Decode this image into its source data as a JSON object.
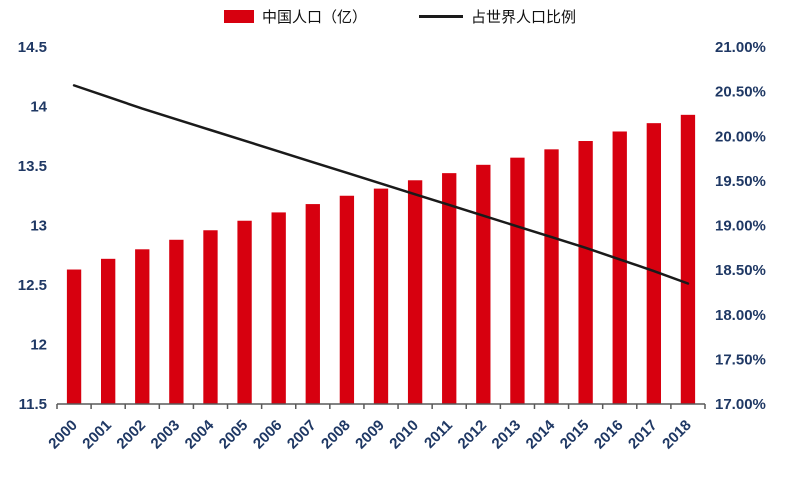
{
  "colors": {
    "bar": "#d7000f",
    "line": "#1a1a1a",
    "axis_label": "#1f3864",
    "axis_line": "#595959"
  },
  "chart_data": {
    "type": "bar",
    "subtype": "combo-bar-line",
    "title": "",
    "xlabel": "",
    "ylabel": "",
    "grid": false,
    "legend_position": "top",
    "categories": [
      "2000",
      "2001",
      "2002",
      "2003",
      "2004",
      "2005",
      "2006",
      "2007",
      "2008",
      "2009",
      "2010",
      "2011",
      "2012",
      "2013",
      "2014",
      "2015",
      "2016",
      "2017",
      "2018"
    ],
    "series": [
      {
        "name": "中国人口（亿）",
        "type": "bar",
        "axis": "left",
        "color": "#d7000f",
        "values": [
          12.63,
          12.72,
          12.8,
          12.88,
          12.96,
          13.04,
          13.11,
          13.18,
          13.25,
          13.31,
          13.38,
          13.44,
          13.51,
          13.57,
          13.64,
          13.71,
          13.79,
          13.86,
          13.93
        ]
      },
      {
        "name": "占世界人口比例",
        "type": "line",
        "axis": "right",
        "color": "#1a1a1a",
        "values": [
          20.57,
          20.44,
          20.31,
          20.19,
          20.07,
          19.95,
          19.83,
          19.71,
          19.59,
          19.47,
          19.35,
          19.23,
          19.11,
          18.99,
          18.87,
          18.75,
          18.62,
          18.49,
          18.35
        ]
      }
    ],
    "left_axis": {
      "min": 11.5,
      "max": 14.5,
      "step": 0.5,
      "tick_labels": [
        "14.5",
        "14",
        "13.5",
        "13",
        "12.5",
        "12",
        "11.5"
      ]
    },
    "right_axis": {
      "min": 17.0,
      "max": 21.0,
      "step": 0.5,
      "tick_labels": [
        "21.00%",
        "20.50%",
        "20.00%",
        "19.50%",
        "19.00%",
        "18.50%",
        "18.00%",
        "17.50%",
        "17.00%"
      ]
    }
  }
}
